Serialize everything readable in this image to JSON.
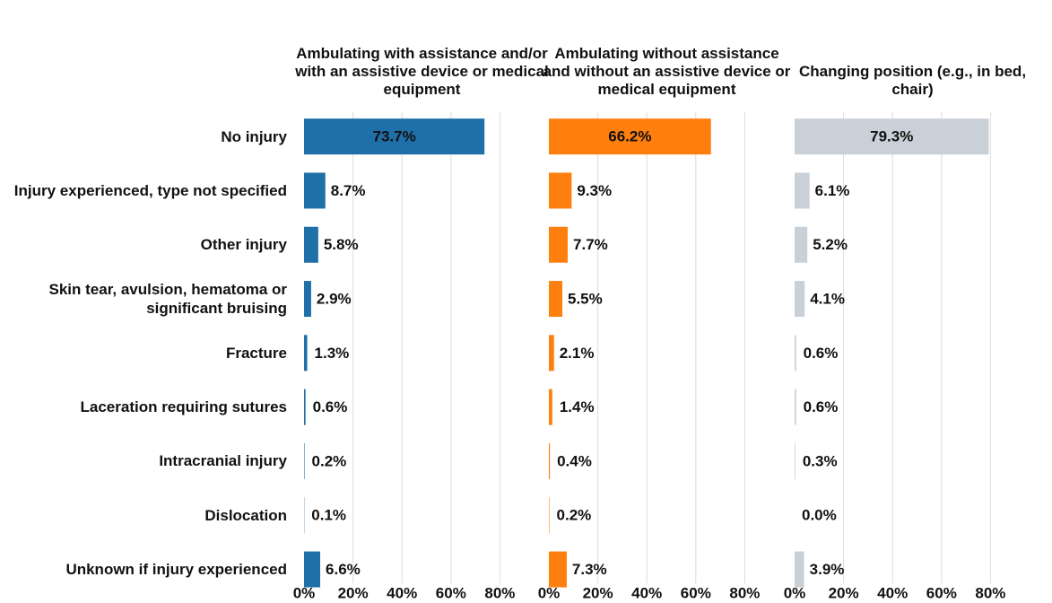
{
  "chart_data": {
    "type": "bar",
    "orientation": "horizontal",
    "categories": [
      "No injury",
      "Injury experienced, type not specified",
      "Other injury",
      "Skin tear, avulsion, hematoma or significant bruising",
      "Fracture",
      "Laceration requiring sutures",
      "Intracranial injury",
      "Dislocation",
      "Unknown if injury experienced"
    ],
    "series": [
      {
        "name": "Ambulating with assistance and/or with an assistive device or medical equipment",
        "color": "#1f6fa8",
        "values": [
          73.7,
          8.7,
          5.8,
          2.9,
          1.3,
          0.6,
          0.2,
          0.1,
          6.6
        ],
        "value_labels": [
          "73.7%",
          "8.7%",
          "5.8%",
          "2.9%",
          "1.3%",
          "0.6%",
          "0.2%",
          "0.1%",
          "6.6%"
        ]
      },
      {
        "name": "Ambulating without assistance and without an assistive device or medical equipment",
        "color": "#ff7f0e",
        "values": [
          66.2,
          9.3,
          7.7,
          5.5,
          2.1,
          1.4,
          0.4,
          0.2,
          7.3
        ],
        "value_labels": [
          "66.2%",
          "9.3%",
          "7.7%",
          "5.5%",
          "2.1%",
          "1.4%",
          "0.4%",
          "0.2%",
          "7.3%"
        ]
      },
      {
        "name": "Changing position (e.g., in bed, chair)",
        "color": "#c9d0d8",
        "values": [
          79.3,
          6.1,
          5.2,
          4.1,
          0.6,
          0.6,
          0.3,
          0.0,
          3.9
        ],
        "value_labels": [
          "79.3%",
          "6.1%",
          "5.2%",
          "4.1%",
          "0.6%",
          "0.6%",
          "0.3%",
          "0.0%",
          "3.9%"
        ]
      }
    ],
    "xlim": [
      0,
      100
    ],
    "xticks": [
      {
        "value": 0,
        "label": "0%"
      },
      {
        "value": 20,
        "label": "20%"
      },
      {
        "value": 40,
        "label": "40%"
      },
      {
        "value": 60,
        "label": "60%"
      },
      {
        "value": 80,
        "label": "80%"
      }
    ],
    "grid": true
  }
}
